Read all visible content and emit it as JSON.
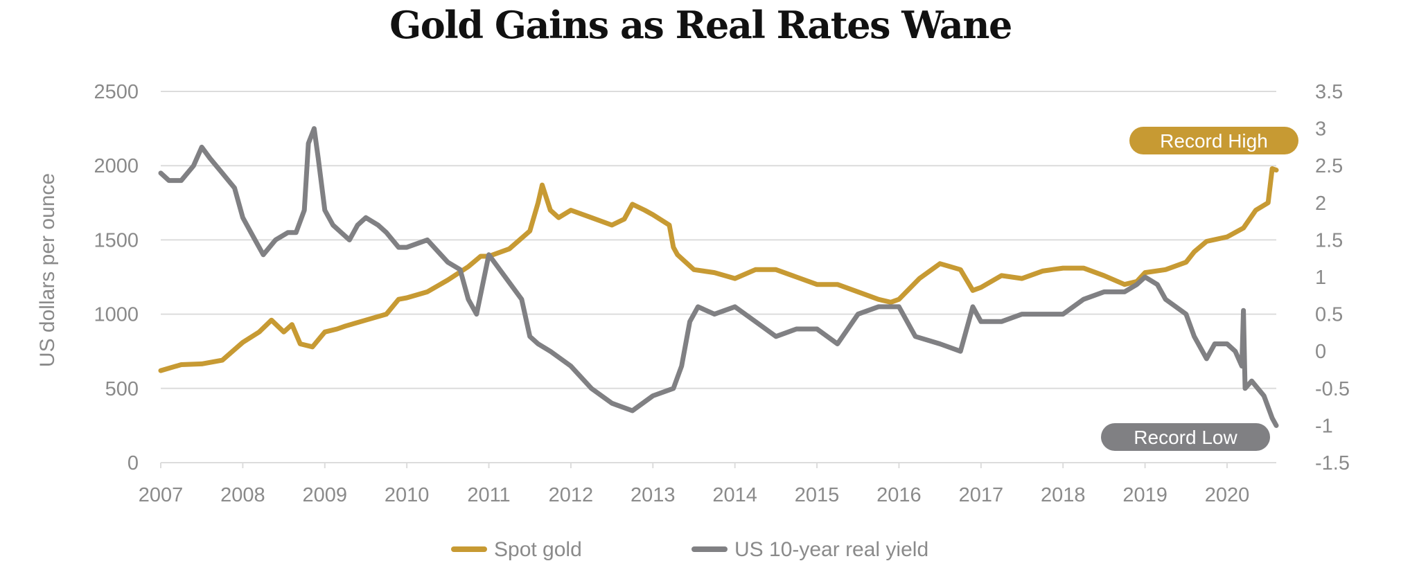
{
  "title": "Gold Gains as Real Rates Wane",
  "colors": {
    "gold": "#c79a33",
    "yield": "#808083",
    "grid": "#dcdcdc",
    "text": "#8a8a8a"
  },
  "chart_data": {
    "type": "line",
    "title": "Gold Gains as Real Rates Wane",
    "x_ticks": [
      "2007",
      "2008",
      "2009",
      "2010",
      "2011",
      "2012",
      "2013",
      "2014",
      "2015",
      "2016",
      "2017",
      "2018",
      "2019",
      "2020"
    ],
    "x_range": [
      2007.0,
      2020.6
    ],
    "y_left": {
      "label": "US dollars per ounce",
      "range": [
        0,
        2500
      ],
      "ticks": [
        "0",
        "500",
        "1000",
        "1500",
        "2000",
        "2500"
      ]
    },
    "y_right": {
      "label": "",
      "range": [
        -1.5,
        3.5
      ],
      "ticks": [
        "-1.5",
        "-1",
        "-0.5",
        "0",
        "0.5",
        "1",
        "1.5",
        "2",
        "2.5",
        "3",
        "3.5"
      ]
    },
    "grid": true,
    "legend_position": "bottom",
    "series": [
      {
        "name": "Spot gold",
        "axis": "left",
        "color": "#c79a33",
        "x": [
          2007.0,
          2007.25,
          2007.5,
          2007.75,
          2008.0,
          2008.2,
          2008.35,
          2008.5,
          2008.6,
          2008.7,
          2008.85,
          2009.0,
          2009.15,
          2009.25,
          2009.5,
          2009.75,
          2009.9,
          2010.0,
          2010.25,
          2010.5,
          2010.75,
          2010.9,
          2011.0,
          2011.25,
          2011.5,
          2011.6,
          2011.65,
          2011.75,
          2011.85,
          2012.0,
          2012.25,
          2012.5,
          2012.65,
          2012.75,
          2012.9,
          2013.0,
          2013.2,
          2013.25,
          2013.3,
          2013.5,
          2013.75,
          2014.0,
          2014.25,
          2014.5,
          2014.75,
          2015.0,
          2015.25,
          2015.5,
          2015.75,
          2015.9,
          2016.0,
          2016.25,
          2016.5,
          2016.75,
          2016.9,
          2017.0,
          2017.25,
          2017.5,
          2017.75,
          2018.0,
          2018.25,
          2018.5,
          2018.75,
          2018.9,
          2019.0,
          2019.25,
          2019.5,
          2019.6,
          2019.75,
          2020.0,
          2020.2,
          2020.35,
          2020.5,
          2020.55,
          2020.6
        ],
        "y": [
          620,
          660,
          665,
          690,
          810,
          880,
          960,
          880,
          930,
          800,
          780,
          880,
          900,
          920,
          960,
          1000,
          1100,
          1110,
          1150,
          1230,
          1320,
          1390,
          1390,
          1440,
          1560,
          1750,
          1870,
          1700,
          1650,
          1700,
          1650,
          1600,
          1640,
          1740,
          1700,
          1670,
          1600,
          1450,
          1400,
          1300,
          1280,
          1240,
          1300,
          1300,
          1250,
          1200,
          1200,
          1150,
          1100,
          1080,
          1100,
          1240,
          1340,
          1300,
          1160,
          1180,
          1260,
          1240,
          1290,
          1310,
          1310,
          1260,
          1200,
          1220,
          1280,
          1300,
          1350,
          1420,
          1490,
          1520,
          1580,
          1700,
          1750,
          1980,
          1970
        ]
      },
      {
        "name": "US 10-year real yield",
        "axis": "right",
        "color": "#808083",
        "x": [
          2007.0,
          2007.1,
          2007.25,
          2007.4,
          2007.5,
          2007.6,
          2007.75,
          2007.9,
          2008.0,
          2008.15,
          2008.25,
          2008.4,
          2008.55,
          2008.65,
          2008.75,
          2008.8,
          2008.87,
          2008.92,
          2009.0,
          2009.1,
          2009.2,
          2009.3,
          2009.4,
          2009.5,
          2009.65,
          2009.75,
          2009.9,
          2010.0,
          2010.25,
          2010.5,
          2010.65,
          2010.75,
          2010.85,
          2011.0,
          2011.2,
          2011.4,
          2011.5,
          2011.6,
          2011.75,
          2012.0,
          2012.25,
          2012.5,
          2012.75,
          2013.0,
          2013.25,
          2013.35,
          2013.45,
          2013.55,
          2013.75,
          2014.0,
          2014.25,
          2014.5,
          2014.75,
          2015.0,
          2015.25,
          2015.5,
          2015.75,
          2016.0,
          2016.2,
          2016.5,
          2016.75,
          2016.9,
          2017.0,
          2017.25,
          2017.5,
          2017.75,
          2018.0,
          2018.25,
          2018.5,
          2018.75,
          2018.9,
          2019.0,
          2019.15,
          2019.25,
          2019.5,
          2019.6,
          2019.75,
          2019.85,
          2020.0,
          2020.1,
          2020.18,
          2020.2,
          2020.22,
          2020.3,
          2020.45,
          2020.55,
          2020.6
        ],
        "y": [
          2.4,
          2.3,
          2.3,
          2.5,
          2.75,
          2.6,
          2.4,
          2.2,
          1.8,
          1.5,
          1.3,
          1.5,
          1.6,
          1.6,
          1.9,
          2.8,
          3.0,
          2.6,
          1.9,
          1.7,
          1.6,
          1.5,
          1.7,
          1.8,
          1.7,
          1.6,
          1.4,
          1.4,
          1.5,
          1.2,
          1.1,
          0.7,
          0.5,
          1.3,
          1.0,
          0.7,
          0.2,
          0.1,
          0.0,
          -0.2,
          -0.5,
          -0.7,
          -0.8,
          -0.6,
          -0.5,
          -0.2,
          0.4,
          0.6,
          0.5,
          0.6,
          0.4,
          0.2,
          0.3,
          0.3,
          0.1,
          0.5,
          0.6,
          0.6,
          0.2,
          0.1,
          0.0,
          0.6,
          0.4,
          0.4,
          0.5,
          0.5,
          0.5,
          0.7,
          0.8,
          0.8,
          0.9,
          1.0,
          0.9,
          0.7,
          0.5,
          0.2,
          -0.1,
          0.1,
          0.1,
          0.0,
          -0.2,
          0.55,
          -0.5,
          -0.4,
          -0.6,
          -0.9,
          -1.0
        ]
      }
    ],
    "annotations": [
      {
        "text": "Record High",
        "series": "Spot gold"
      },
      {
        "text": "Record Low",
        "series": "US 10-year real yield"
      }
    ]
  }
}
